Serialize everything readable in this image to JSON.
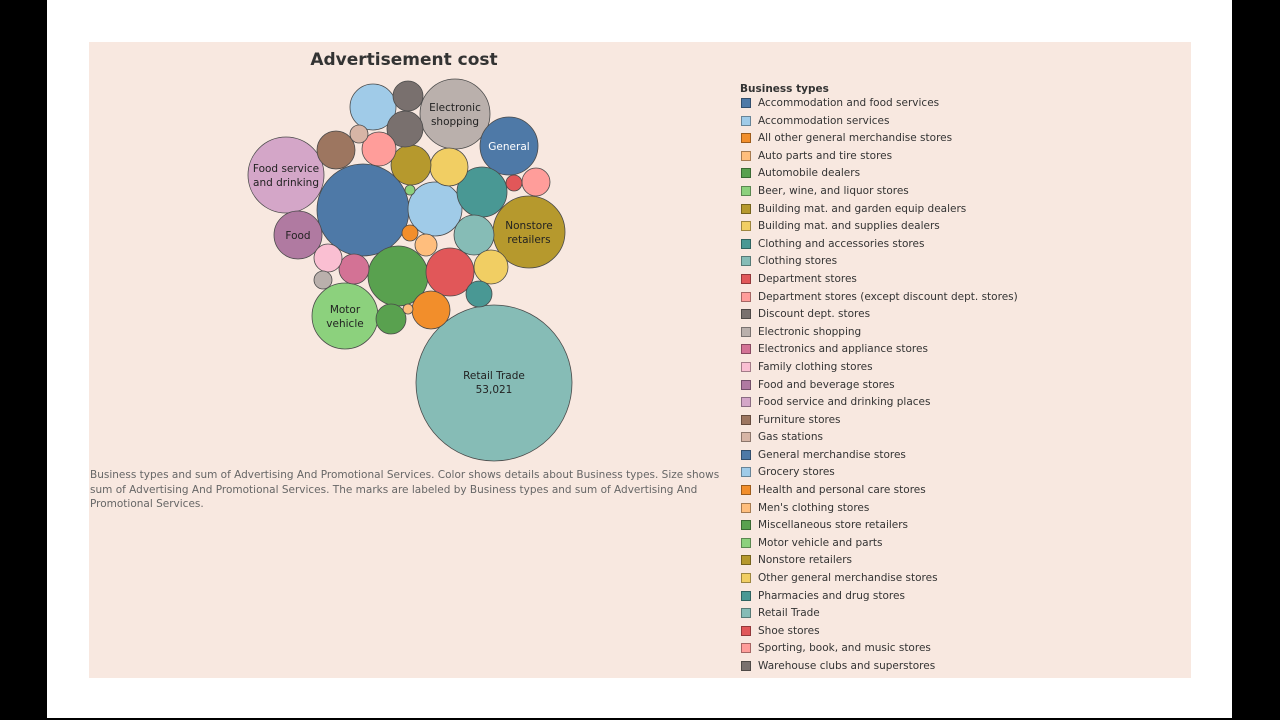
{
  "chart_data": {
    "type": "bubble",
    "title": "Advertisement cost",
    "caption": "Business types and sum of Advertising And Promotional Services.  Color shows details about Business types.  Size shows sum of Advertising And Promotional Services.  The marks are labeled by Business types and sum of Advertising And Promotional Services.",
    "legend": {
      "title": "Business types",
      "position": "right",
      "items": [
        {
          "name": "Accommodation and food services",
          "color": "#4e79a7"
        },
        {
          "name": "Accommodation services",
          "color": "#a0cbe8"
        },
        {
          "name": "All other general merchandise stores",
          "color": "#f28e2b"
        },
        {
          "name": "Auto parts and tire stores",
          "color": "#ffbe7d"
        },
        {
          "name": "Automobile dealers",
          "color": "#59a14f"
        },
        {
          "name": "Beer, wine, and liquor stores",
          "color": "#8cd17d"
        },
        {
          "name": "Building mat. and garden equip dealers",
          "color": "#b6992d"
        },
        {
          "name": "Building mat. and supplies dealers",
          "color": "#f1ce63"
        },
        {
          "name": "Clothing and accessories stores",
          "color": "#499894"
        },
        {
          "name": "Clothing stores",
          "color": "#86bcb6"
        },
        {
          "name": "Department stores",
          "color": "#e15759"
        },
        {
          "name": "Department stores (except discount dept. stores)",
          "color": "#ff9d9a"
        },
        {
          "name": "Discount dept. stores",
          "color": "#79706e"
        },
        {
          "name": "Electronic shopping",
          "color": "#bab0ac"
        },
        {
          "name": "Electronics and appliance stores",
          "color": "#d37295"
        },
        {
          "name": "Family clothing stores",
          "color": "#fabfd2"
        },
        {
          "name": "Food and beverage stores",
          "color": "#b07aa1"
        },
        {
          "name": "Food service and drinking places",
          "color": "#d4a6c8"
        },
        {
          "name": "Furniture stores",
          "color": "#9d7660"
        },
        {
          "name": "Gas stations",
          "color": "#d7b5a6"
        },
        {
          "name": "General merchandise stores",
          "color": "#4e79a7"
        },
        {
          "name": "Grocery stores",
          "color": "#a0cbe8"
        },
        {
          "name": "Health and personal care stores",
          "color": "#f28e2b"
        },
        {
          "name": "Men's clothing stores",
          "color": "#ffbe7d"
        },
        {
          "name": "Miscellaneous store retailers",
          "color": "#59a14f"
        },
        {
          "name": "Motor vehicle and parts",
          "color": "#8cd17d"
        },
        {
          "name": "Nonstore retailers",
          "color": "#b6992d"
        },
        {
          "name": "Other general merchandise stores",
          "color": "#f1ce63"
        },
        {
          "name": "Pharmacies and drug stores",
          "color": "#499894"
        },
        {
          "name": "Retail Trade",
          "color": "#86bcb6"
        },
        {
          "name": "Shoe stores",
          "color": "#e15759"
        },
        {
          "name": "Sporting, book, and  music stores",
          "color": "#ff9d9a"
        },
        {
          "name": "Warehouse clubs and superstores",
          "color": "#79706e"
        }
      ]
    },
    "labeled_marks": [
      {
        "series": "Retail Trade",
        "label": "Retail Trade",
        "value": 53021,
        "value_label": "53,021"
      },
      {
        "series": "Food service and drinking places",
        "label": "Food service and drinking"
      },
      {
        "series": "Electronic shopping",
        "label": "Electronic shopping"
      },
      {
        "series": "General merchandise stores",
        "label": "General"
      },
      {
        "series": "Nonstore retailers",
        "label": "Nonstore retailers"
      },
      {
        "series": "Food and beverage stores",
        "label": "Food"
      },
      {
        "series": "Motor vehicle and parts",
        "label": "Motor vehicle"
      }
    ]
  }
}
